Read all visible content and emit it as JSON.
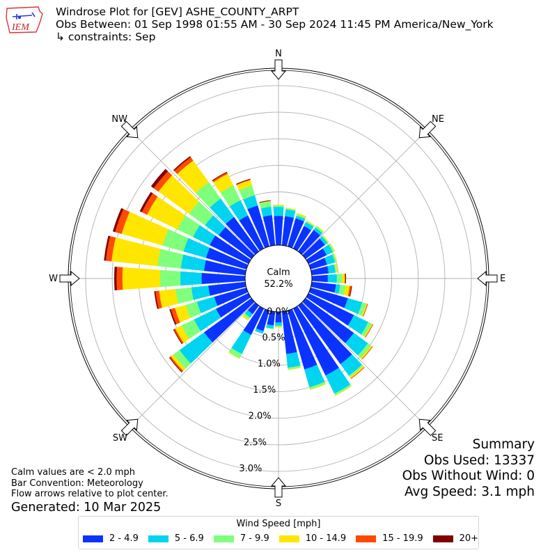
{
  "header": {
    "logo_text": "IEM",
    "title_line1": "Windrose Plot for [GEV] ASHE_COUNTY_ARPT",
    "title_line2": "Obs Between: 01 Sep 1998 01:55 AM - 30 Sep 2024 11:45 PM America/New_York",
    "title_line3": "↳ constraints: Sep"
  },
  "footer": {
    "note1": "Calm values are < 2.0 mph",
    "note2": "Bar Convention: Meteorology",
    "note3": "Flow arrows relative to plot center.",
    "generated": "Generated: 10 Mar 2025"
  },
  "summary": {
    "title": "Summary",
    "obs_used": "Obs Used: 13337",
    "obs_without_wind": "Obs Without Wind: 0",
    "avg_speed": "Avg Speed: 3.1 mph"
  },
  "legend": {
    "title": "Wind Speed [mph]"
  },
  "chart_data": {
    "type": "windrose",
    "convention": "meteorology",
    "calm_label": "Calm",
    "calm_percent": "52.2%",
    "direction_labels": [
      "N",
      "NE",
      "E",
      "SE",
      "S",
      "SW",
      "W",
      "NW"
    ],
    "radial_ticks": [
      0.0,
      0.5,
      1.0,
      1.5,
      2.0,
      2.5,
      3.0
    ],
    "radial_tick_labels": [
      "0.0%",
      "0.5%",
      "1.0%",
      "1.5%",
      "2.0%",
      "2.5%",
      "3.0%"
    ],
    "rmax": 3.3,
    "bins": [
      {
        "label": "2 - 4.9",
        "color": "#0a33ff"
      },
      {
        "label": "5 - 6.9",
        "color": "#00d4f0"
      },
      {
        "label": "7 - 9.9",
        "color": "#80ff7c"
      },
      {
        "label": "10 - 14.9",
        "color": "#ffe600"
      },
      {
        "label": "15 - 19.9",
        "color": "#ff4a00"
      },
      {
        "label": "20+",
        "color": "#800000"
      }
    ],
    "directions": [
      0,
      10,
      20,
      30,
      40,
      50,
      60,
      70,
      80,
      90,
      100,
      110,
      120,
      130,
      140,
      150,
      160,
      170,
      180,
      190,
      200,
      210,
      220,
      230,
      240,
      250,
      260,
      270,
      280,
      290,
      300,
      310,
      320,
      330,
      340,
      350
    ],
    "cumulative_percent": [
      [
        0.55,
        0.72,
        0.75,
        0.76,
        0.76,
        0.76
      ],
      [
        0.55,
        0.68,
        0.7,
        0.71,
        0.71,
        0.71
      ],
      [
        0.55,
        0.6,
        0.63,
        0.65,
        0.65,
        0.65
      ],
      [
        0.47,
        0.55,
        0.57,
        0.58,
        0.58,
        0.58
      ],
      [
        0.5,
        0.56,
        0.59,
        0.6,
        0.6,
        0.6
      ],
      [
        0.45,
        0.51,
        0.53,
        0.54,
        0.54,
        0.54
      ],
      [
        0.38,
        0.51,
        0.54,
        0.55,
        0.55,
        0.55
      ],
      [
        0.32,
        0.48,
        0.51,
        0.52,
        0.52,
        0.52
      ],
      [
        0.32,
        0.45,
        0.47,
        0.49,
        0.49,
        0.49
      ],
      [
        0.3,
        0.47,
        0.57,
        0.62,
        0.63,
        0.64
      ],
      [
        0.46,
        0.54,
        0.64,
        0.72,
        0.75,
        0.76
      ],
      [
        0.73,
        1.01,
        1.09,
        1.11,
        1.12,
        1.12
      ],
      [
        0.95,
        1.25,
        1.32,
        1.34,
        1.35,
        1.35
      ],
      [
        1.12,
        1.45,
        1.52,
        1.55,
        1.56,
        1.56
      ],
      [
        1.36,
        1.63,
        1.66,
        1.69,
        1.7,
        1.7
      ],
      [
        1.4,
        1.78,
        1.81,
        1.82,
        1.82,
        1.82
      ],
      [
        1.15,
        1.5,
        1.54,
        1.55,
        1.55,
        1.55
      ],
      [
        0.8,
        1.06,
        1.09,
        1.1,
        1.1,
        1.1
      ],
      [
        0.2,
        0.26,
        0.28,
        0.29,
        0.29,
        0.29
      ],
      [
        0.26,
        0.32,
        0.33,
        0.33,
        0.33,
        0.33
      ],
      [
        0.4,
        0.45,
        0.45,
        0.45,
        0.45,
        0.45
      ],
      [
        0.55,
        0.95,
        1.04,
        1.05,
        1.05,
        1.05
      ],
      [
        0.2,
        0.28,
        0.32,
        0.35,
        0.35,
        0.35
      ],
      [
        1.1,
        1.67,
        1.81,
        1.87,
        1.9,
        1.91
      ],
      [
        0.68,
        1.14,
        1.4,
        1.53,
        1.56,
        1.57
      ],
      [
        0.63,
        0.97,
        1.19,
        1.4,
        1.48,
        1.5
      ],
      [
        0.7,
        1.02,
        1.32,
        1.63,
        1.7,
        1.72
      ],
      [
        0.82,
        1.22,
        1.6,
        2.31,
        2.42,
        2.46
      ],
      [
        0.78,
        1.22,
        1.66,
        2.53,
        2.64,
        2.67
      ],
      [
        0.79,
        1.23,
        1.64,
        2.44,
        2.57,
        2.61
      ],
      [
        0.81,
        1.16,
        1.49,
        2.12,
        2.23,
        2.27
      ],
      [
        0.76,
        1.08,
        1.45,
        2.16,
        2.27,
        2.33
      ],
      [
        0.8,
        1.23,
        1.61,
        2.11,
        2.19,
        2.21
      ],
      [
        0.69,
        1.01,
        1.32,
        1.56,
        1.59,
        1.6
      ],
      [
        0.8,
        1.0,
        1.19,
        1.3,
        1.31,
        1.32
      ],
      [
        0.57,
        0.73,
        0.83,
        0.84,
        0.84,
        0.85
      ]
    ]
  }
}
